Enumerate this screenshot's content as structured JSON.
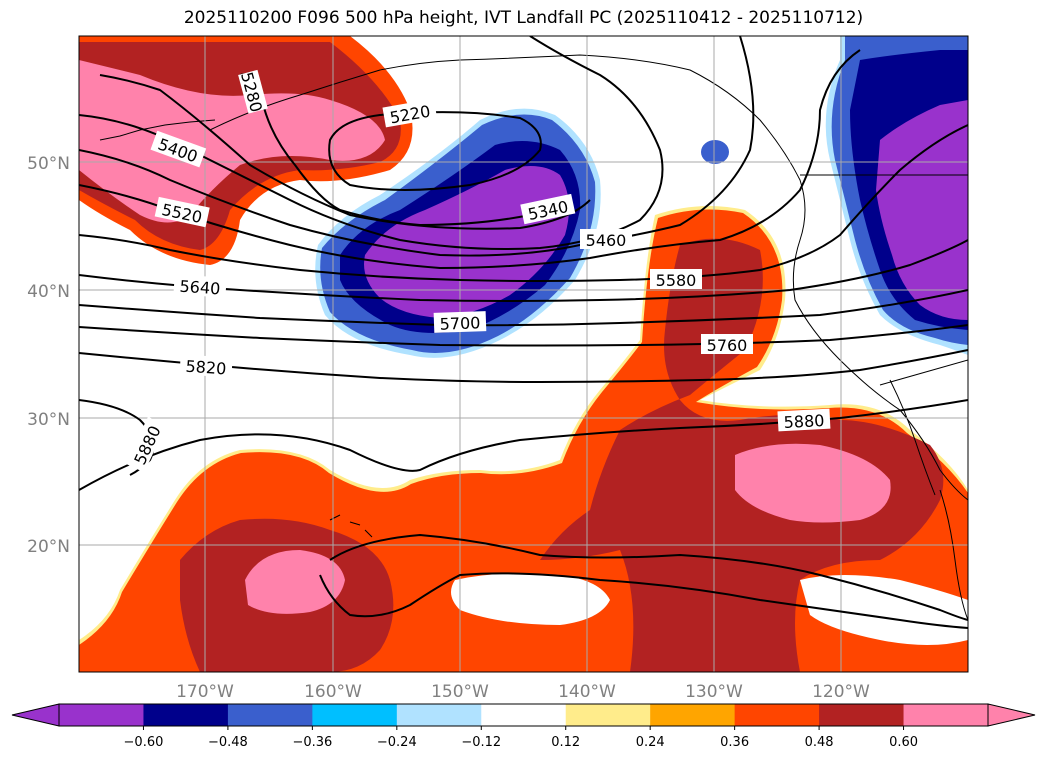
{
  "title": "2025110200 F096 500 hPa height, IVT Landfall PC (2025110412 - 2025110712)",
  "map": {
    "longitude_labels": [
      "170°W",
      "160°W",
      "150°W",
      "140°W",
      "130°W",
      "120°W"
    ],
    "latitude_labels": [
      "50°N",
      "40°N",
      "30°N",
      "20°N"
    ],
    "height_contour_labels": [
      "5280",
      "5220",
      "5400",
      "5340",
      "5460",
      "5520",
      "5580",
      "5640",
      "5700",
      "5760",
      "5820",
      "5880",
      "5880"
    ],
    "gridlines": true,
    "coastlines": true
  },
  "colorbar": {
    "ticks": [
      "−0.60",
      "−0.48",
      "−0.36",
      "−0.24",
      "−0.12",
      "0.12",
      "0.24",
      "0.36",
      "0.48",
      "0.60"
    ],
    "colors": [
      "#9932cc",
      "#00008b",
      "#3a5fcd",
      "#00bfff",
      "#b0e2ff",
      "#ffffff",
      "#ffec8b",
      "#ffa500",
      "#ff4500",
      "#b22222",
      "#ff82ab"
    ],
    "extend": "both"
  }
}
